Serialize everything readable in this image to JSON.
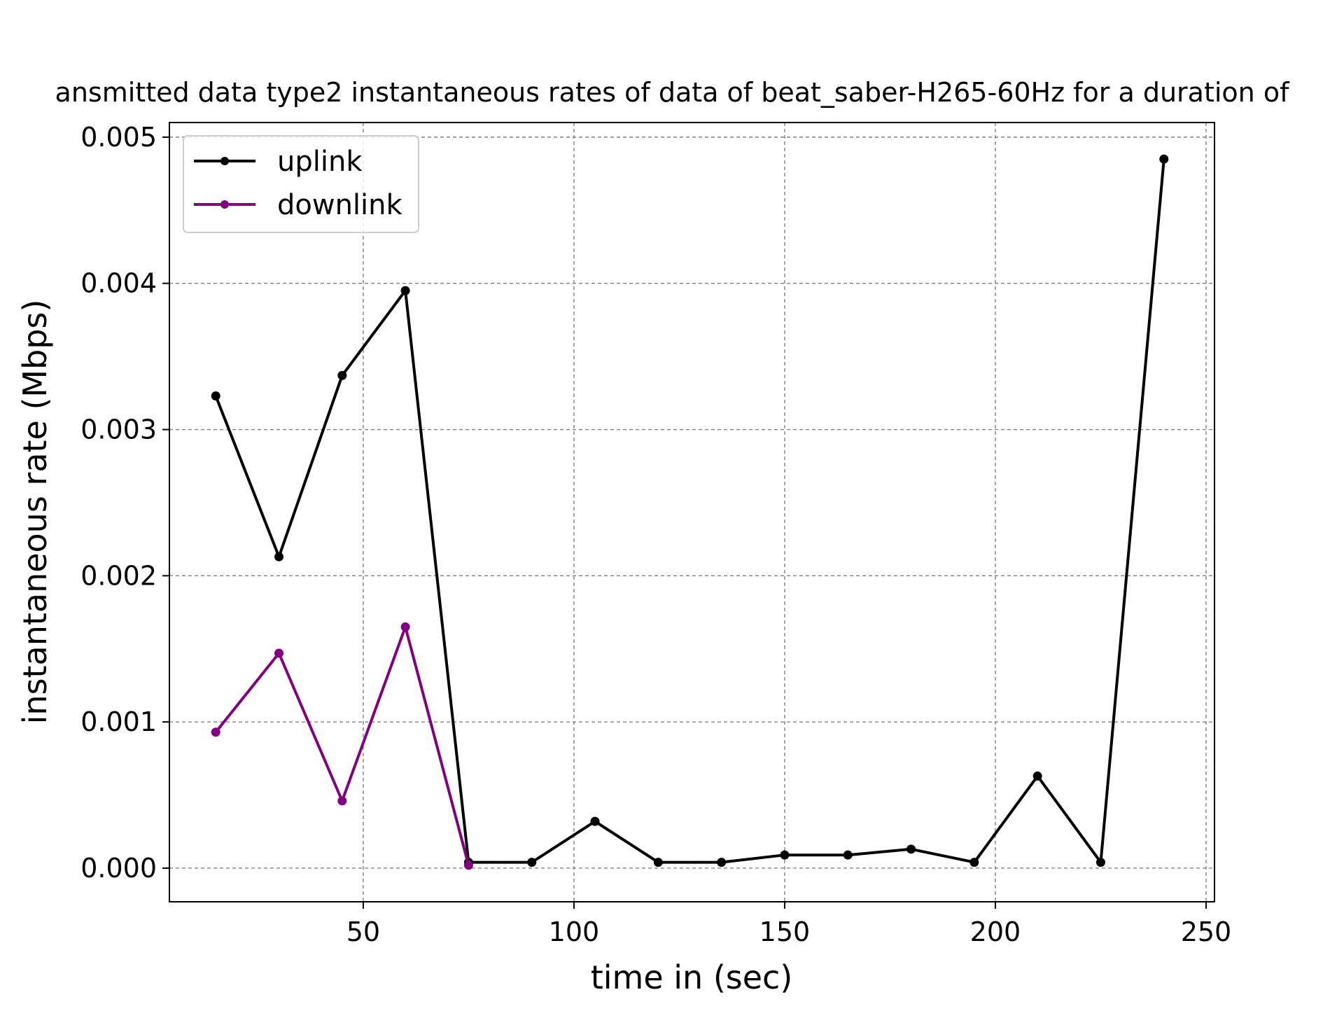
{
  "chart_data": {
    "type": "line",
    "title": "ansmitted data type2 instantaneous rates of data of beat_saber-H265-60Hz for a duration of",
    "xlabel": "time in (sec)",
    "ylabel": "instantaneous rate (Mbps)",
    "xlim": [
      4,
      252
    ],
    "ylim": [
      -0.00023,
      0.0051
    ],
    "xticks": [
      50,
      100,
      150,
      200,
      250
    ],
    "xtick_labels": [
      "50",
      "100",
      "150",
      "200",
      "250"
    ],
    "yticks": [
      0,
      0.001,
      0.002,
      0.003,
      0.004,
      0.005
    ],
    "ytick_labels": [
      "0.000",
      "0.001",
      "0.002",
      "0.003",
      "0.004",
      "0.005"
    ],
    "grid": true,
    "legend_position": "top-left",
    "series": [
      {
        "name": "uplink",
        "color": "#000000",
        "x": [
          15,
          30,
          45,
          60,
          75,
          90,
          105,
          120,
          135,
          150,
          165,
          180,
          195,
          210,
          225,
          240
        ],
        "y": [
          0.00323,
          0.00213,
          0.00337,
          0.00395,
          4e-05,
          4e-05,
          0.00032,
          4e-05,
          4e-05,
          9e-05,
          9e-05,
          0.00013,
          4e-05,
          0.00063,
          4e-05,
          0.00485
        ]
      },
      {
        "name": "downlink",
        "color": "#800080",
        "x": [
          15,
          30,
          45,
          60,
          75
        ],
        "y": [
          0.00093,
          0.00147,
          0.00046,
          0.00165,
          2e-05
        ]
      }
    ]
  }
}
